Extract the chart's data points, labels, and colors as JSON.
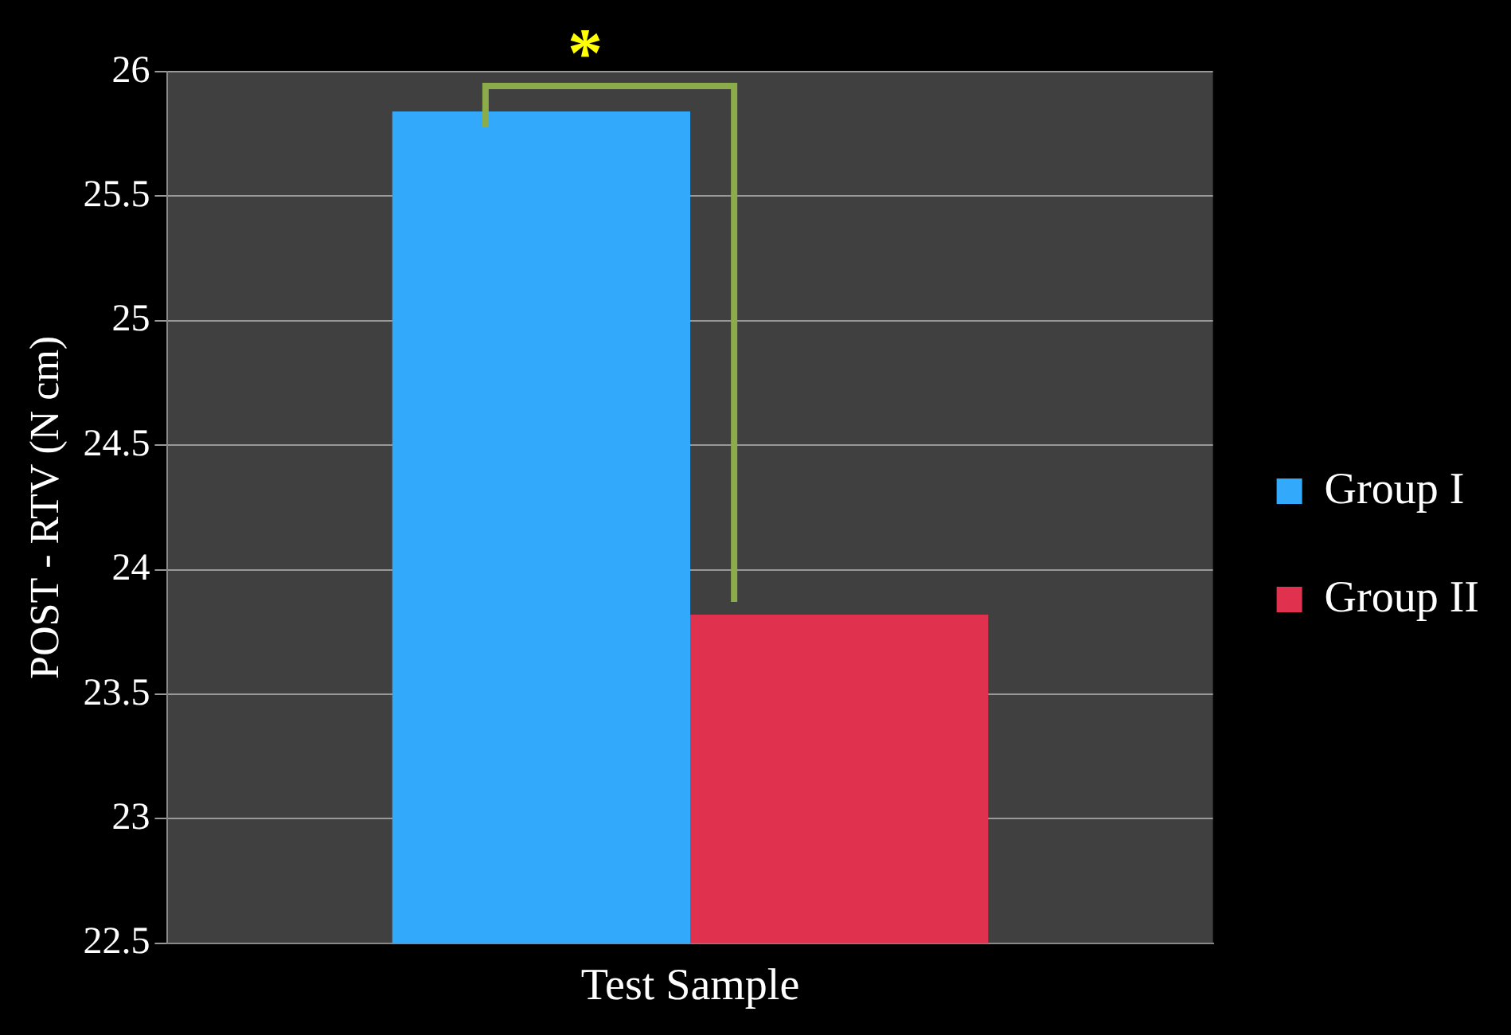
{
  "chart_data": {
    "type": "bar",
    "ylabel": "POST - RTV (N cm)",
    "categories": [
      "Test Sample"
    ],
    "series": [
      {
        "name": "Group I",
        "color": "#33a9fb",
        "values": [
          25.84
        ]
      },
      {
        "name": "Group II",
        "color": "#e0314f",
        "values": [
          23.82
        ]
      }
    ],
    "ylim": [
      22.5,
      26
    ],
    "yticks": [
      22.5,
      23,
      23.5,
      24,
      24.5,
      25,
      25.5,
      26
    ],
    "grid": "y",
    "legend": "right",
    "annotations": [
      "*"
    ]
  }
}
